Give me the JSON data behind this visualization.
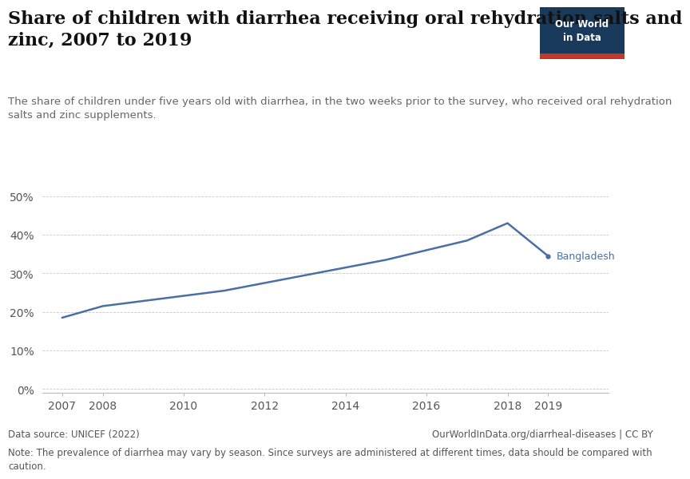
{
  "title": "Share of children with diarrhea receiving oral rehydration salts and\nzinc, 2007 to 2019",
  "subtitle": "The share of children under five years old with diarrhea, in the two weeks prior to the survey, who received oral rehydration\nsalts and zinc supplements.",
  "years": [
    2007,
    2008,
    2011,
    2012,
    2013,
    2014,
    2015,
    2016,
    2017,
    2018,
    2019
  ],
  "values": [
    18.5,
    21.5,
    25.5,
    27.5,
    29.5,
    31.5,
    33.5,
    36.0,
    38.5,
    43.0,
    34.5
  ],
  "line_color": "#4a6fa5",
  "label": "Bangladesh",
  "label_color": "#4a6fa5",
  "background_color": "#ffffff",
  "grid_color": "#c8c8c8",
  "axis_color": "#bbbbbb",
  "yticks": [
    0,
    10,
    20,
    30,
    40,
    50
  ],
  "xticks": [
    2007,
    2008,
    2010,
    2012,
    2014,
    2016,
    2018,
    2019
  ],
  "ylim": [
    -1,
    53
  ],
  "xlim": [
    2006.5,
    2020.5
  ],
  "data_source": "Data source: UNICEF (2022)",
  "url": "OurWorldInData.org/diarrheal-diseases | CC BY",
  "note": "Note: The prevalence of diarrhea may vary by season. Since surveys are administered at different times, data should be compared with\ncaution.",
  "owid_box_color": "#1a3a5c",
  "owid_box_red": "#c0392b",
  "title_fontsize": 16,
  "subtitle_fontsize": 9.5,
  "tick_fontsize": 10,
  "footer_fontsize": 8.5
}
